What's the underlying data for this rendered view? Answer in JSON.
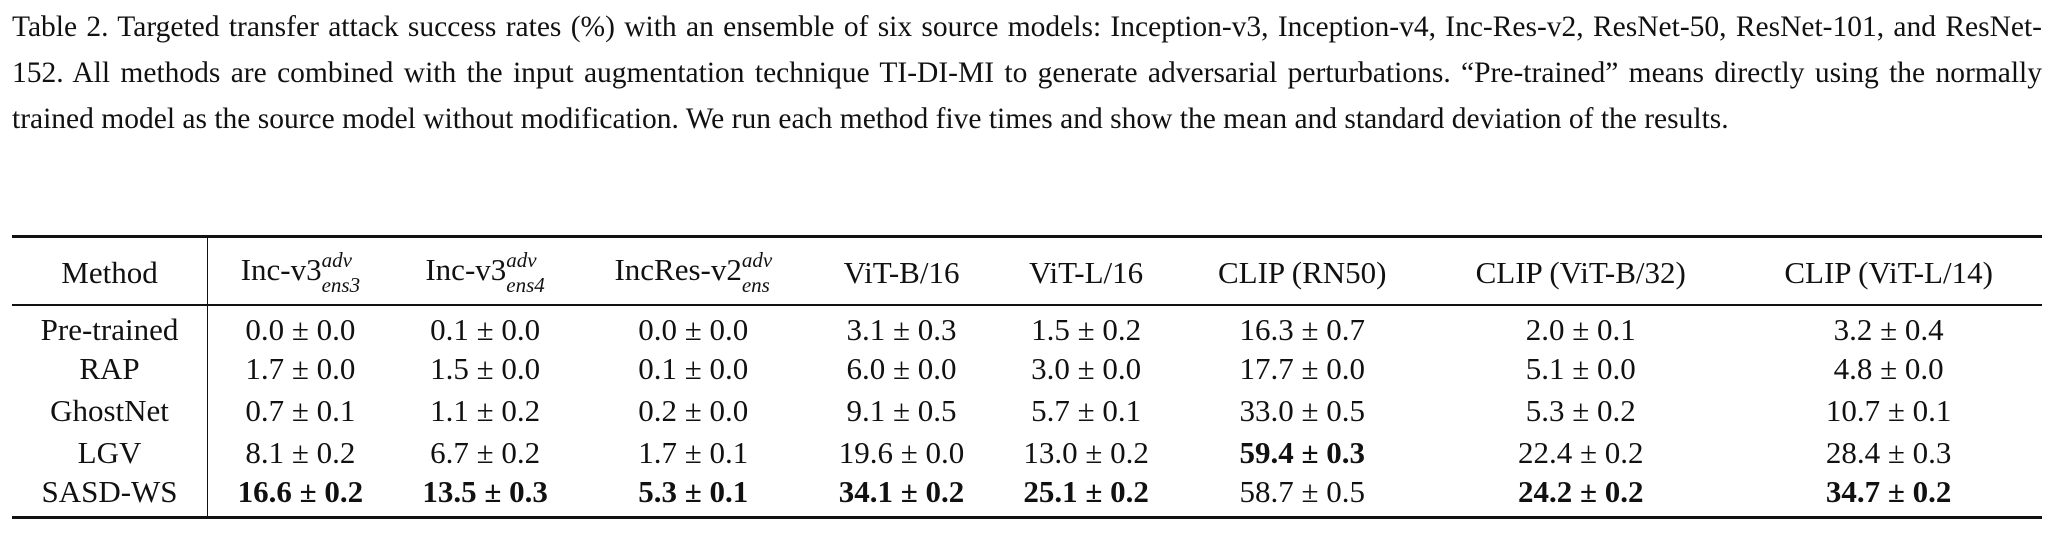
{
  "caption": {
    "text": "Table 2. Targeted transfer attack success rates (%) with an ensemble of six source models: Inception-v3, Inception-v4, Inc-Res-v2, ResNet-50, ResNet-101, and ResNet-152. All methods are combined with the input augmentation technique TI-DI-MI to generate adversarial perturbations. “Pre-trained” means directly using the normally trained model as the source model without modification. We run each method five times and show the mean and standard deviation of the results."
  },
  "table": {
    "header": {
      "method": "Method",
      "cols": [
        {
          "base": "Inc-v3",
          "sup": "adv",
          "sub": "ens3"
        },
        {
          "base": "Inc-v3",
          "sup": "adv",
          "sub": "ens4"
        },
        {
          "base": "IncRes-v2",
          "sup": "adv",
          "sub": "ens"
        },
        {
          "base": "ViT-B/16"
        },
        {
          "base": "ViT-L/16"
        },
        {
          "base": "CLIP (RN50)"
        },
        {
          "base": "CLIP (ViT-B/32)"
        },
        {
          "base": "CLIP (ViT-L/14)"
        }
      ]
    },
    "rows": [
      {
        "method": "Pre-trained",
        "cells": [
          {
            "v": "0.0 ± 0.0",
            "b": false
          },
          {
            "v": "0.1 ± 0.0",
            "b": false
          },
          {
            "v": "0.0 ± 0.0",
            "b": false
          },
          {
            "v": "3.1 ± 0.3",
            "b": false
          },
          {
            "v": "1.5 ± 0.2",
            "b": false
          },
          {
            "v": "16.3 ± 0.7",
            "b": false
          },
          {
            "v": "2.0 ± 0.1",
            "b": false
          },
          {
            "v": "3.2 ± 0.4",
            "b": false
          }
        ]
      },
      {
        "method": "RAP",
        "cells": [
          {
            "v": "1.7 ± 0.0",
            "b": false
          },
          {
            "v": "1.5 ± 0.0",
            "b": false
          },
          {
            "v": "0.1 ± 0.0",
            "b": false
          },
          {
            "v": "6.0 ± 0.0",
            "b": false
          },
          {
            "v": "3.0 ± 0.0",
            "b": false
          },
          {
            "v": "17.7 ± 0.0",
            "b": false
          },
          {
            "v": "5.1 ± 0.0",
            "b": false
          },
          {
            "v": "4.8 ± 0.0",
            "b": false
          }
        ]
      },
      {
        "method": "GhostNet",
        "cells": [
          {
            "v": "0.7 ± 0.1",
            "b": false
          },
          {
            "v": "1.1 ± 0.2",
            "b": false
          },
          {
            "v": "0.2 ± 0.0",
            "b": false
          },
          {
            "v": "9.1 ± 0.5",
            "b": false
          },
          {
            "v": "5.7 ± 0.1",
            "b": false
          },
          {
            "v": "33.0 ± 0.5",
            "b": false
          },
          {
            "v": "5.3 ± 0.2",
            "b": false
          },
          {
            "v": "10.7 ± 0.1",
            "b": false
          }
        ]
      },
      {
        "method": "LGV",
        "cells": [
          {
            "v": "8.1 ± 0.2",
            "b": false
          },
          {
            "v": "6.7 ± 0.2",
            "b": false
          },
          {
            "v": "1.7 ± 0.1",
            "b": false
          },
          {
            "v": "19.6 ± 0.0",
            "b": false
          },
          {
            "v": "13.0 ± 0.2",
            "b": false
          },
          {
            "v": "59.4 ± 0.3",
            "b": true
          },
          {
            "v": "22.4 ± 0.2",
            "b": false
          },
          {
            "v": "28.4 ± 0.3",
            "b": false
          }
        ]
      },
      {
        "method": "SASD-WS",
        "cells": [
          {
            "v": "16.6 ± 0.2",
            "b": true
          },
          {
            "v": "13.5 ± 0.3",
            "b": true
          },
          {
            "v": "5.3 ± 0.1",
            "b": true
          },
          {
            "v": "34.1 ± 0.2",
            "b": true
          },
          {
            "v": "25.1 ± 0.2",
            "b": true
          },
          {
            "v": "58.7 ± 0.5",
            "b": false
          },
          {
            "v": "24.2 ± 0.2",
            "b": true
          },
          {
            "v": "34.7 ± 0.2",
            "b": true
          }
        ]
      }
    ]
  }
}
